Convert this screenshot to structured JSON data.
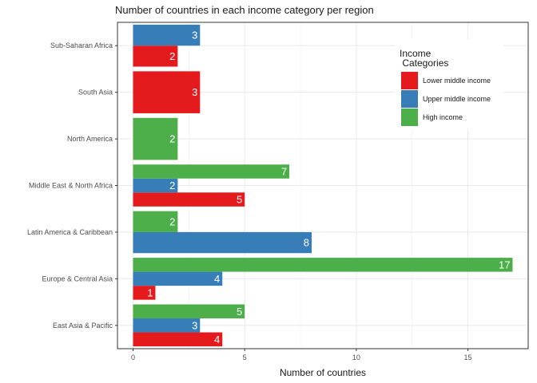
{
  "chart_data": {
    "type": "bar",
    "orientation": "horizontal",
    "title": "Number of countries in each income category per region",
    "xlabel": "Number of countries",
    "ylabel": "",
    "xlim": [
      0,
      17.5
    ],
    "xticks": [
      0,
      5,
      10,
      15
    ],
    "grid": true,
    "legend_position": "top-right",
    "legend_title": "Income\n Categories",
    "categories": [
      "East Asia & Pacific",
      "Europe & Central Asia",
      "Latin America & Caribbean",
      "Middle East & North Africa",
      "North America",
      "South Asia",
      "Sub-Saharan Africa"
    ],
    "series": [
      {
        "name": "Lower middle income",
        "color": "#E41A1C",
        "values": [
          4,
          1,
          null,
          5,
          null,
          3,
          2
        ]
      },
      {
        "name": "Upper middle income",
        "color": "#377EB8",
        "values": [
          3,
          4,
          8,
          2,
          null,
          null,
          3
        ]
      },
      {
        "name": "High income",
        "color": "#4DAF4A",
        "values": [
          5,
          17,
          2,
          7,
          2,
          null,
          null
        ]
      }
    ]
  }
}
